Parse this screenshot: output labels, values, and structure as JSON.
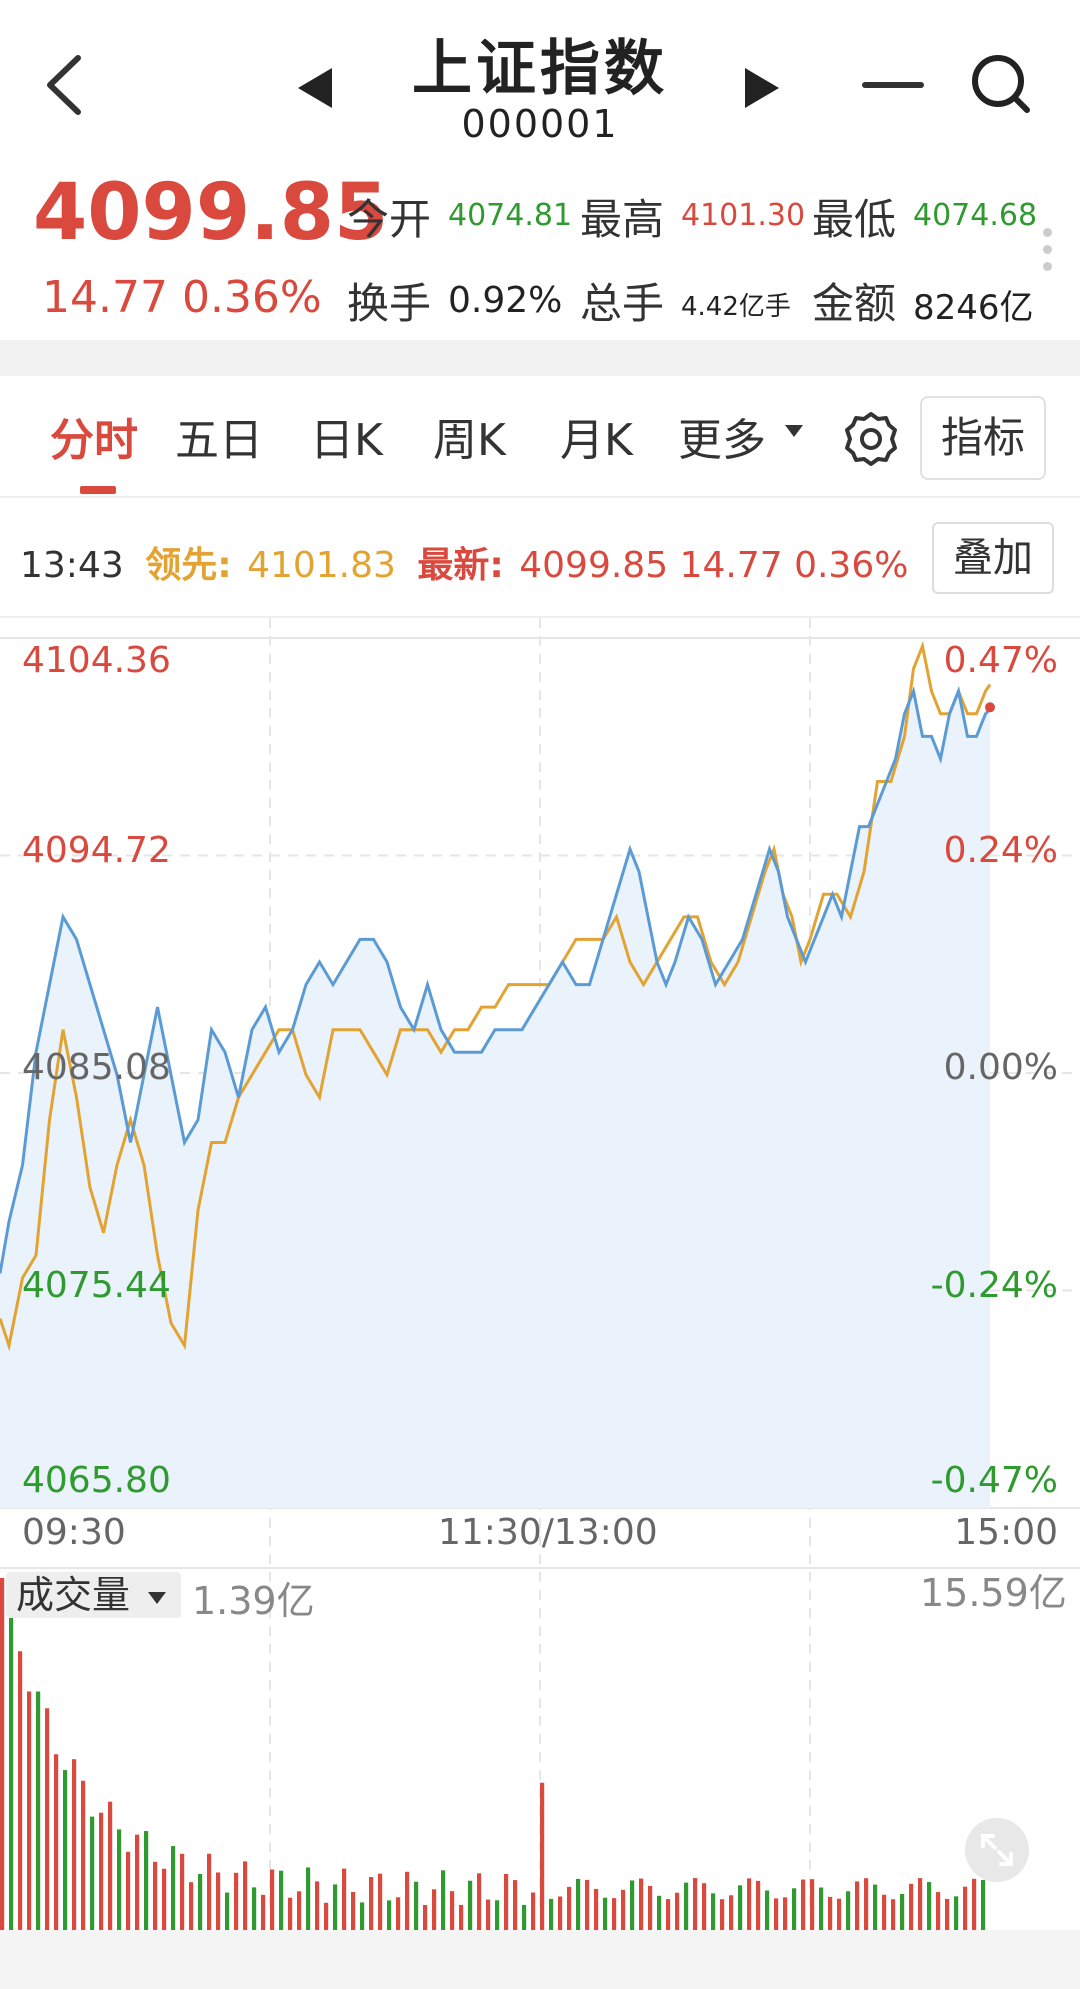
{
  "header": {
    "title": "上证指数",
    "code": "000001"
  },
  "quote": {
    "price": "4099.85",
    "change": "14.77  0.36%",
    "open_label": "今开",
    "open_value": "4074.81",
    "high_label": "最高",
    "high_value": "4101.30",
    "low_label": "最低",
    "low_value": "4074.68",
    "turnover_label": "换手",
    "turnover_value": "0.92%",
    "volume_label": "总手",
    "volume_value": "4.42亿手",
    "amount_label": "金额",
    "amount_value": "8246亿"
  },
  "tabs": {
    "fenshi": "分时",
    "wuri": "五日",
    "rik": "日K",
    "zhouk": "周K",
    "yuek": "月K",
    "more": "更多",
    "indicator": "指标"
  },
  "info_row": {
    "time": "13:43",
    "lead_label": "领先:",
    "lead_value": "4101.83",
    "latest_label": "最新:",
    "latest_value": "4099.85 14.77 0.36%",
    "overlay_button": "叠加"
  },
  "colors": {
    "up": "#d9493e",
    "down": "#2f9a2f",
    "price_line": "#5b9bd5",
    "lead_line": "#e3a332",
    "area_fill": "#eaf3fb"
  },
  "chart_data": {
    "type": "line",
    "x_ticks": [
      "09:30",
      "11:30/13:00",
      "15:00"
    ],
    "y_ticks_left": [
      "4104.36",
      "4094.72",
      "4085.08",
      "4075.44",
      "4065.80"
    ],
    "y_ticks_right": [
      "0.47%",
      "0.24%",
      "0.00%",
      "-0.24%",
      "-0.47%"
    ],
    "ylim": [
      4065.8,
      4104.36
    ],
    "total_minutes": 240,
    "series": [
      {
        "name": "最新",
        "points": [
          [
            0,
            4076.2
          ],
          [
            2,
            4078.5
          ],
          [
            5,
            4081
          ],
          [
            8,
            4086
          ],
          [
            11,
            4089
          ],
          [
            14,
            4092
          ],
          [
            17,
            4091
          ],
          [
            20,
            4089
          ],
          [
            23,
            4087
          ],
          [
            26,
            4085
          ],
          [
            29,
            4082
          ],
          [
            32,
            4085
          ],
          [
            35,
            4088
          ],
          [
            38,
            4085
          ],
          [
            41,
            4082
          ],
          [
            44,
            4083
          ],
          [
            47,
            4087
          ],
          [
            50,
            4086
          ],
          [
            53,
            4084
          ],
          [
            56,
            4087
          ],
          [
            59,
            4088
          ],
          [
            62,
            4086
          ],
          [
            65,
            4087
          ],
          [
            68,
            4089
          ],
          [
            71,
            4090
          ],
          [
            74,
            4089
          ],
          [
            77,
            4090
          ],
          [
            80,
            4091
          ],
          [
            83,
            4091
          ],
          [
            86,
            4090
          ],
          [
            89,
            4088
          ],
          [
            92,
            4087
          ],
          [
            95,
            4089
          ],
          [
            98,
            4087
          ],
          [
            101,
            4086
          ],
          [
            104,
            4086
          ],
          [
            107,
            4086
          ],
          [
            110,
            4087
          ],
          [
            113,
            4087
          ],
          [
            116,
            4087
          ],
          [
            119,
            4088
          ],
          [
            122,
            4089
          ],
          [
            125,
            4090
          ],
          [
            128,
            4089
          ],
          [
            131,
            4089
          ],
          [
            134,
            4091
          ],
          [
            137,
            4093
          ],
          [
            140,
            4095
          ],
          [
            142,
            4094
          ],
          [
            144,
            4092
          ],
          [
            146,
            4090
          ],
          [
            148,
            4089
          ],
          [
            150,
            4090
          ],
          [
            153,
            4092
          ],
          [
            156,
            4091
          ],
          [
            159,
            4089
          ],
          [
            162,
            4090
          ],
          [
            165,
            4091
          ],
          [
            168,
            4093
          ],
          [
            171,
            4095
          ],
          [
            173,
            4094
          ],
          [
            175,
            4092
          ],
          [
            177,
            4091
          ],
          [
            179,
            4090
          ],
          [
            181,
            4091
          ],
          [
            183,
            4092
          ],
          [
            185,
            4093
          ],
          [
            187,
            4092
          ],
          [
            189,
            4094
          ],
          [
            191,
            4096
          ],
          [
            193,
            4096
          ],
          [
            195,
            4097
          ],
          [
            197,
            4098
          ],
          [
            199,
            4099
          ],
          [
            201,
            4101
          ],
          [
            203,
            4102
          ],
          [
            205,
            4100
          ],
          [
            207,
            4100
          ],
          [
            209,
            4099
          ],
          [
            211,
            4101
          ],
          [
            213,
            4102
          ],
          [
            215,
            4100
          ],
          [
            217,
            4100
          ],
          [
            219,
            4101
          ],
          [
            220,
            4101.2
          ]
        ]
      },
      {
        "name": "领先",
        "points": [
          [
            0,
            4074.2
          ],
          [
            2,
            4073
          ],
          [
            5,
            4076
          ],
          [
            8,
            4077
          ],
          [
            11,
            4083
          ],
          [
            14,
            4087
          ],
          [
            17,
            4084
          ],
          [
            20,
            4080
          ],
          [
            23,
            4078
          ],
          [
            26,
            4081
          ],
          [
            29,
            4083
          ],
          [
            32,
            4081
          ],
          [
            35,
            4077
          ],
          [
            38,
            4074
          ],
          [
            41,
            4073
          ],
          [
            44,
            4079
          ],
          [
            47,
            4082
          ],
          [
            50,
            4082
          ],
          [
            53,
            4084
          ],
          [
            56,
            4085
          ],
          [
            59,
            4086
          ],
          [
            62,
            4087
          ],
          [
            65,
            4087
          ],
          [
            68,
            4085
          ],
          [
            71,
            4084
          ],
          [
            74,
            4087
          ],
          [
            77,
            4087
          ],
          [
            80,
            4087
          ],
          [
            83,
            4086
          ],
          [
            86,
            4085
          ],
          [
            89,
            4087
          ],
          [
            92,
            4087
          ],
          [
            95,
            4087
          ],
          [
            98,
            4086
          ],
          [
            101,
            4087
          ],
          [
            104,
            4087
          ],
          [
            107,
            4088
          ],
          [
            110,
            4088
          ],
          [
            113,
            4089
          ],
          [
            116,
            4089
          ],
          [
            119,
            4089
          ],
          [
            122,
            4089
          ],
          [
            125,
            4090
          ],
          [
            128,
            4091
          ],
          [
            131,
            4091
          ],
          [
            134,
            4091
          ],
          [
            137,
            4092
          ],
          [
            140,
            4090
          ],
          [
            143,
            4089
          ],
          [
            146,
            4090
          ],
          [
            149,
            4091
          ],
          [
            152,
            4092
          ],
          [
            155,
            4092
          ],
          [
            158,
            4090
          ],
          [
            161,
            4089
          ],
          [
            164,
            4090
          ],
          [
            167,
            4092
          ],
          [
            170,
            4094
          ],
          [
            172,
            4095
          ],
          [
            174,
            4093
          ],
          [
            176,
            4092
          ],
          [
            178,
            4090
          ],
          [
            180,
            4091
          ],
          [
            183,
            4093
          ],
          [
            186,
            4093
          ],
          [
            189,
            4092
          ],
          [
            192,
            4094
          ],
          [
            195,
            4098
          ],
          [
            198,
            4098
          ],
          [
            201,
            4100
          ],
          [
            203,
            4103
          ],
          [
            205,
            4104
          ],
          [
            207,
            4102
          ],
          [
            209,
            4101
          ],
          [
            211,
            4101
          ],
          [
            213,
            4102
          ],
          [
            215,
            4101
          ],
          [
            217,
            4101
          ],
          [
            219,
            4102
          ],
          [
            220,
            4102.3
          ]
        ]
      }
    ],
    "volume": {
      "label": "成交量",
      "current": "1.39亿",
      "max_label": "15.59亿",
      "max": 15.59
    }
  }
}
